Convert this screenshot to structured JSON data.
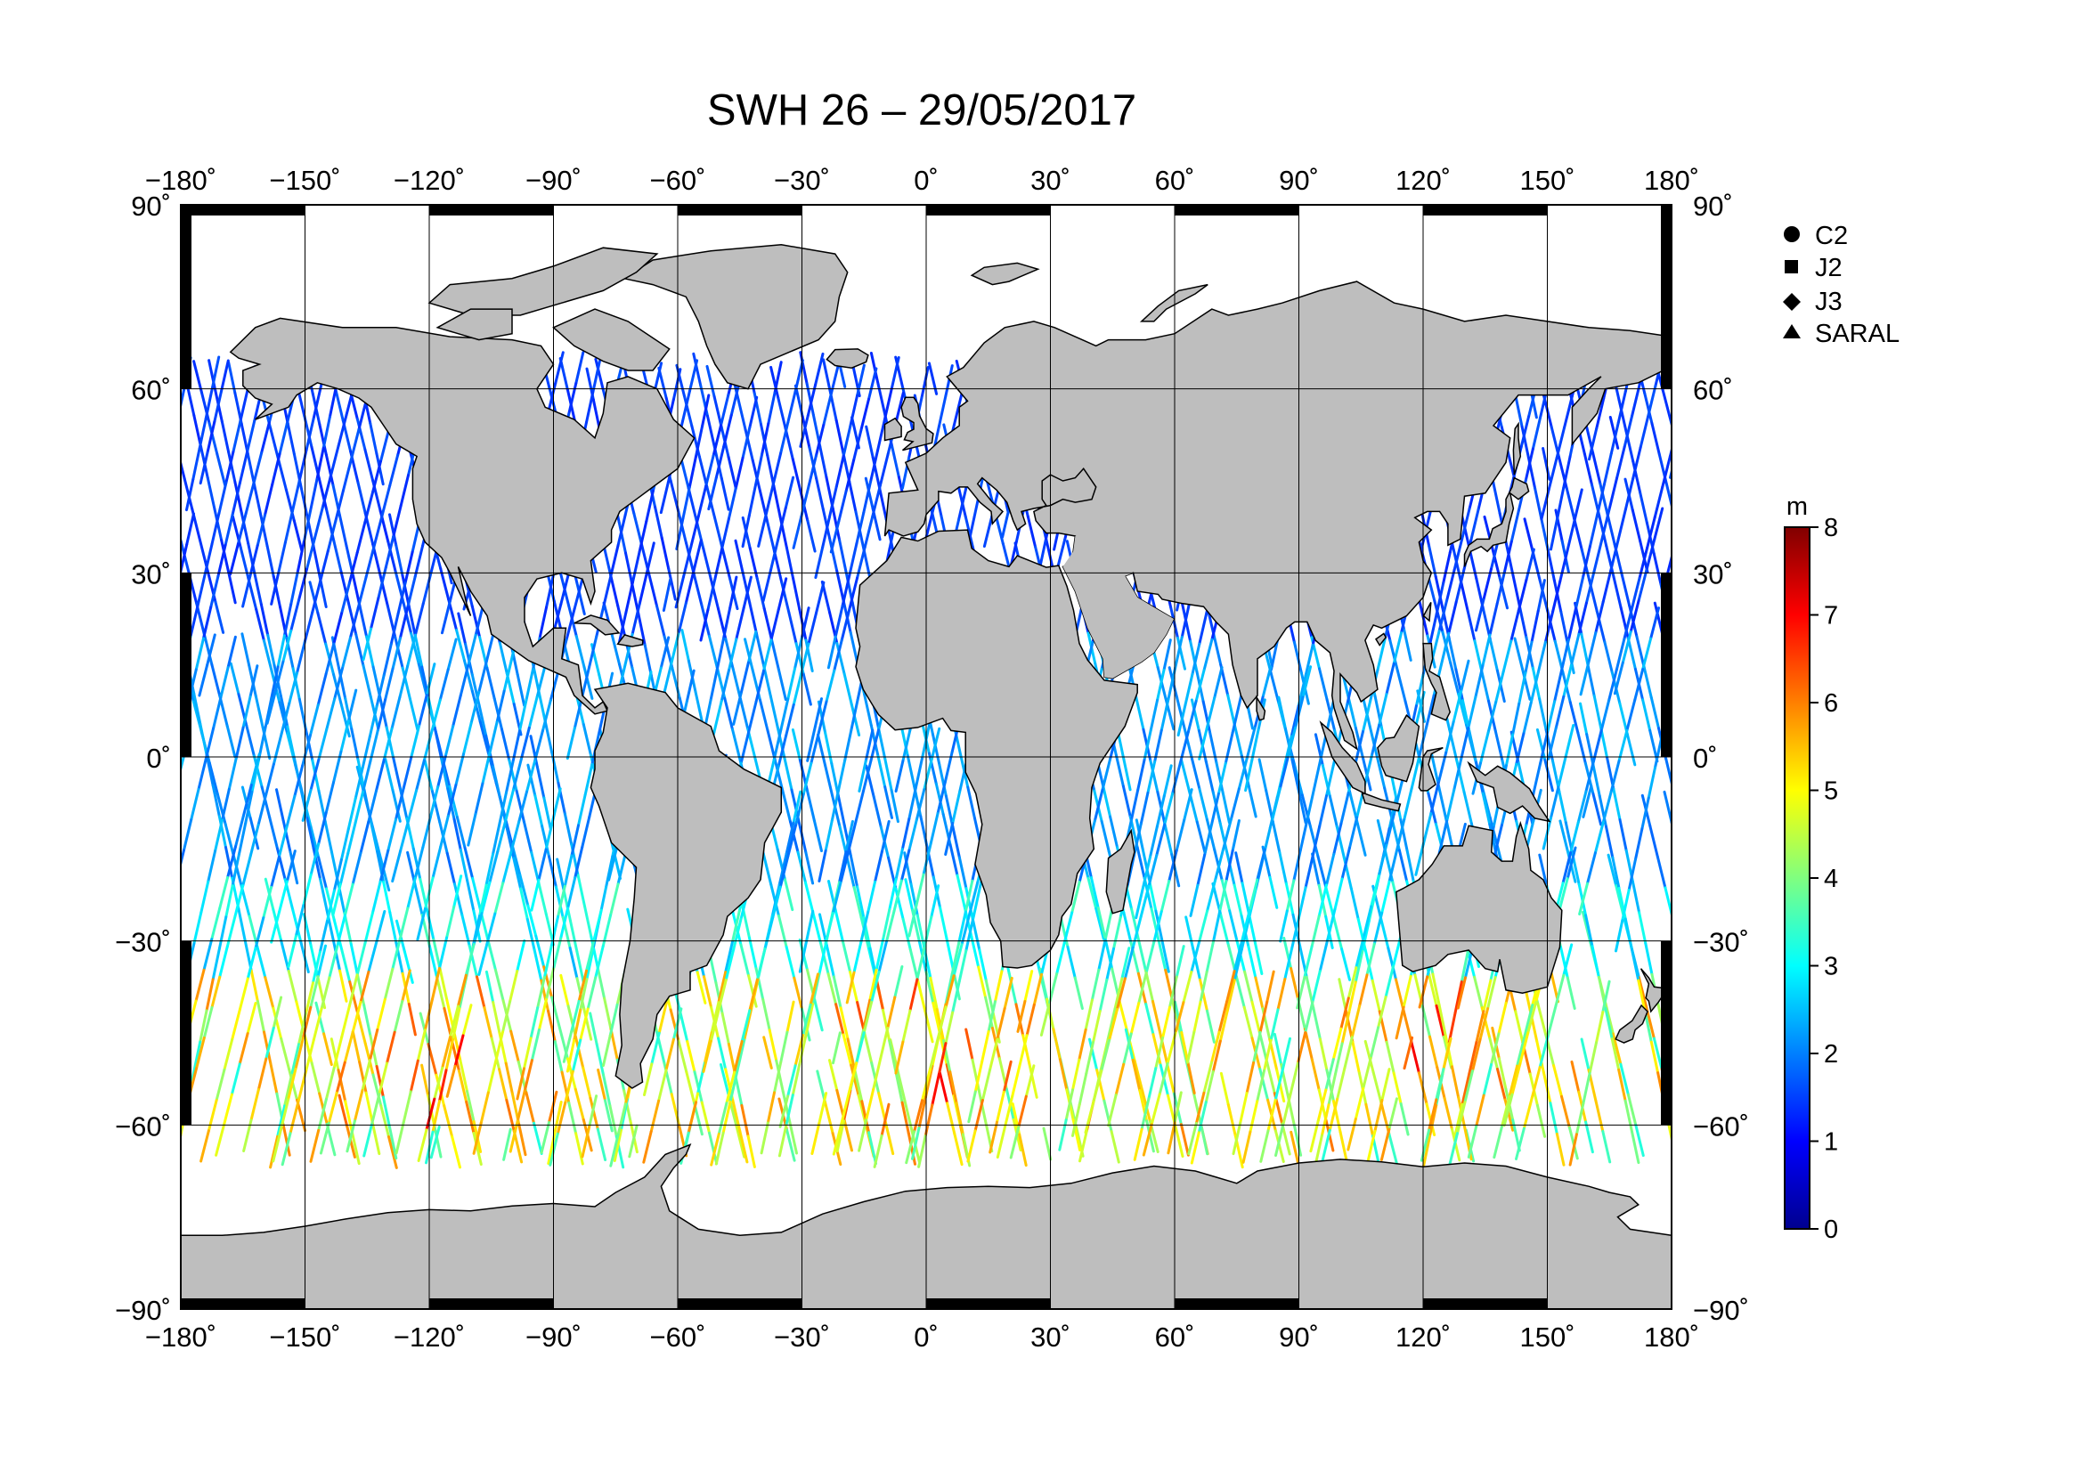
{
  "title": "SWH 26 – 29/05/2017",
  "map": {
    "projection": "plate carree (equirectangular)",
    "lon_range": [
      -180,
      180
    ],
    "lat_range": [
      -90,
      90
    ],
    "grid": true,
    "land_color": "#bebebe",
    "ocean_color": "#ffffff"
  },
  "axes": {
    "lon_ticks": [
      -180,
      -150,
      -120,
      -90,
      -60,
      -30,
      0,
      30,
      60,
      90,
      120,
      150,
      180
    ],
    "lon_labels": [
      "−180˚",
      "−150˚",
      "−120˚",
      "−90˚",
      "−60˚",
      "−30˚",
      "0˚",
      "30˚",
      "60˚",
      "90˚",
      "120˚",
      "150˚",
      "180˚"
    ],
    "lat_ticks": [
      90,
      60,
      30,
      0,
      -30,
      -60,
      -90
    ],
    "lat_labels": [
      "90˚",
      "60˚",
      "30˚",
      "0˚",
      "−30˚",
      "−60˚",
      "−90˚"
    ]
  },
  "legend": {
    "placement": "top-right",
    "items": [
      {
        "symbol": "circle",
        "label": "C2"
      },
      {
        "symbol": "square",
        "label": "J2"
      },
      {
        "symbol": "diamond",
        "label": "J3"
      },
      {
        "symbol": "triangle",
        "label": "SARAL"
      }
    ]
  },
  "colorbar": {
    "unit": "m",
    "min": 0,
    "max": 8,
    "ticks": [
      "0",
      "1",
      "2",
      "3",
      "4",
      "5",
      "6",
      "7",
      "8"
    ],
    "colormap": "jet"
  },
  "chart_data": {
    "type": "scatter",
    "description": "Along-track significant wave height (SWH) from altimeter ground tracks",
    "variable": "SWH",
    "unit": "m",
    "value_range": [
      0,
      8
    ],
    "wave_height_zones": [
      {
        "lat_band": [
          45,
          65
        ],
        "typical_swh": 1.5
      },
      {
        "lat_band": [
          20,
          45
        ],
        "typical_swh": 1.5
      },
      {
        "lat_band": [
          -20,
          20
        ],
        "typical_swh": 2.0
      },
      {
        "lat_band": [
          -35,
          -20
        ],
        "typical_swh": 3.0
      },
      {
        "lat_band": [
          -65,
          -35
        ],
        "typical_swh": 5.0
      }
    ]
  }
}
